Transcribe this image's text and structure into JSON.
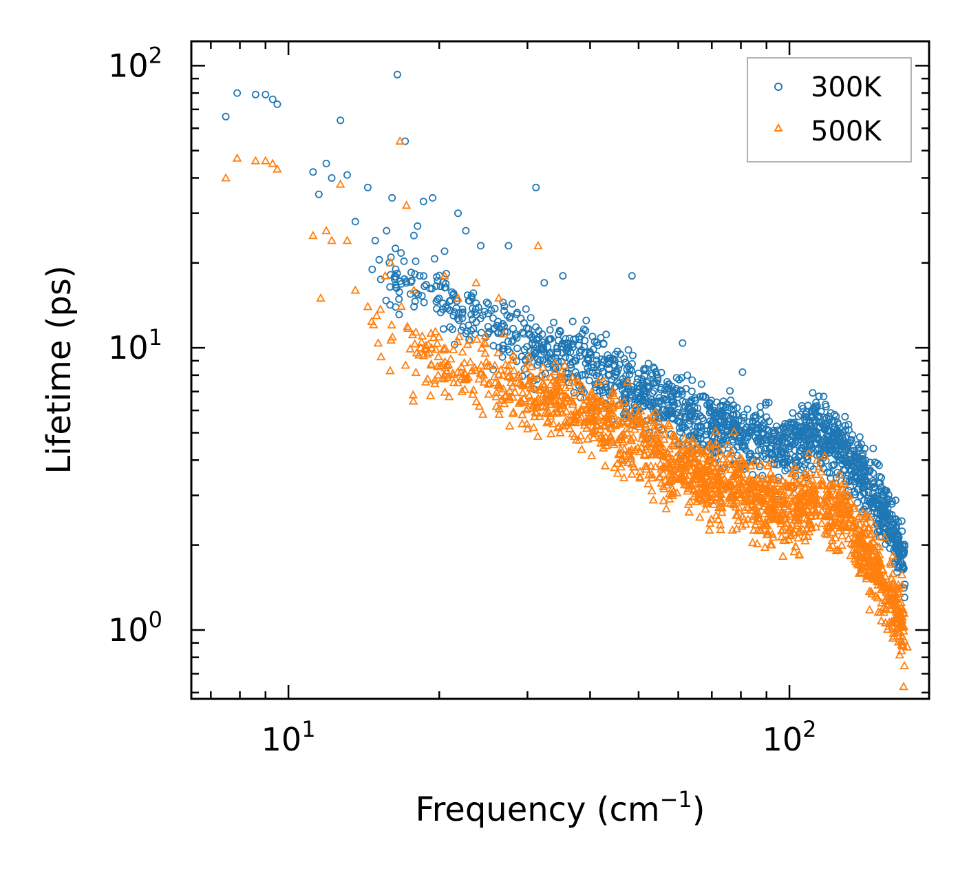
{
  "chart_data": {
    "type": "scatter",
    "xscale": "log",
    "yscale": "log",
    "xlim": [
      6.4,
      190
    ],
    "ylim": [
      0.57,
      122
    ],
    "xlabel": "Frequency (cm",
    "xlabel_sup": "−1",
    "xlabel_close": ")",
    "ylabel": "Lifetime (ps)",
    "xticks": [
      {
        "base": "10",
        "exp": "1",
        "value": 10
      },
      {
        "base": "10",
        "exp": "2",
        "value": 100
      }
    ],
    "yticks": [
      {
        "base": "10",
        "exp": "0",
        "value": 1
      },
      {
        "base": "10",
        "exp": "1",
        "value": 10
      },
      {
        "base": "10",
        "exp": "2",
        "value": 100
      }
    ],
    "legend_position": "top-right",
    "series": [
      {
        "name": "300K",
        "color": "#1f77b4",
        "marker": "circle",
        "points": [
          [
            7.5,
            66
          ],
          [
            7.9,
            80
          ],
          [
            8.6,
            79
          ],
          [
            9.0,
            79
          ],
          [
            9.3,
            76
          ],
          [
            9.5,
            73
          ],
          [
            11.2,
            42
          ],
          [
            11.5,
            35
          ],
          [
            11.9,
            45
          ],
          [
            12.2,
            40
          ],
          [
            12.7,
            64
          ],
          [
            13.1,
            41
          ],
          [
            13.6,
            28
          ],
          [
            14.4,
            37
          ],
          [
            14.9,
            24
          ],
          [
            15.7,
            26
          ],
          [
            15.9,
            20
          ],
          [
            16.1,
            34
          ],
          [
            16.5,
            93
          ],
          [
            17.1,
            54
          ],
          [
            17.8,
            25
          ],
          [
            18.1,
            27
          ],
          [
            18.6,
            33
          ],
          [
            19.4,
            34
          ],
          [
            20.5,
            22
          ],
          [
            21.8,
            30
          ],
          [
            22.6,
            26
          ],
          [
            24.2,
            23
          ],
          [
            27.5,
            23
          ],
          [
            31.2,
            37
          ],
          [
            32.4,
            17
          ],
          [
            35.3,
            18
          ],
          [
            48.5,
            18
          ],
          [
            61.2,
            10.4
          ],
          [
            80.6,
            8.2
          ],
          [
            113.0,
            6.4
          ],
          [
            118.0,
            6.3
          ],
          [
            123.0,
            5.8
          ],
          [
            170.0,
            1.45
          ]
        ],
        "trend": {
          "log_x": [
            1.17,
            1.25,
            1.35,
            1.45,
            1.55,
            1.63,
            1.7,
            1.75,
            1.8,
            1.85,
            1.9,
            1.95,
            2.0,
            2.05,
            2.1,
            2.15,
            2.2,
            2.23
          ],
          "log_y": [
            1.28,
            1.22,
            1.13,
            1.04,
            0.98,
            0.92,
            0.85,
            0.8,
            0.76,
            0.72,
            0.7,
            0.67,
            0.64,
            0.7,
            0.66,
            0.54,
            0.38,
            0.25
          ],
          "spread": 0.11,
          "count": 1600,
          "xmin_log": 1.16,
          "xmax_log": 2.23
        }
      },
      {
        "name": "500K",
        "color": "#ff7f0e",
        "marker": "triangle",
        "points": [
          [
            7.5,
            40
          ],
          [
            7.9,
            47
          ],
          [
            8.6,
            46
          ],
          [
            9.0,
            46
          ],
          [
            9.3,
            45
          ],
          [
            9.5,
            43
          ],
          [
            11.2,
            25
          ],
          [
            11.6,
            15
          ],
          [
            11.9,
            26
          ],
          [
            12.2,
            24
          ],
          [
            12.7,
            38
          ],
          [
            13.1,
            24
          ],
          [
            13.6,
            16
          ],
          [
            14.4,
            14
          ],
          [
            15.0,
            13
          ],
          [
            15.6,
            18
          ],
          [
            16.0,
            20
          ],
          [
            16.7,
            54
          ],
          [
            17.2,
            32
          ],
          [
            17.8,
            16
          ],
          [
            18.5,
            11
          ],
          [
            19.3,
            10
          ],
          [
            20.5,
            18
          ],
          [
            21.8,
            15
          ],
          [
            23.7,
            17
          ],
          [
            26.3,
            15
          ],
          [
            31.5,
            23
          ],
          [
            26.0,
            6.2
          ],
          [
            19.9,
            8.0
          ],
          [
            169.0,
            0.63
          ],
          [
            172.0,
            0.87
          ]
        ],
        "trend": {
          "log_x": [
            1.17,
            1.25,
            1.35,
            1.45,
            1.55,
            1.63,
            1.7,
            1.75,
            1.8,
            1.85,
            1.9,
            1.95,
            2.0,
            2.05,
            2.1,
            2.15,
            2.2,
            2.23
          ],
          "log_y": [
            1.1,
            1.0,
            0.93,
            0.86,
            0.8,
            0.74,
            0.67,
            0.61,
            0.56,
            0.52,
            0.49,
            0.45,
            0.42,
            0.47,
            0.42,
            0.3,
            0.12,
            0.02
          ],
          "spread": 0.12,
          "count": 1700,
          "xmin_log": 1.16,
          "xmax_log": 2.23
        }
      }
    ]
  }
}
